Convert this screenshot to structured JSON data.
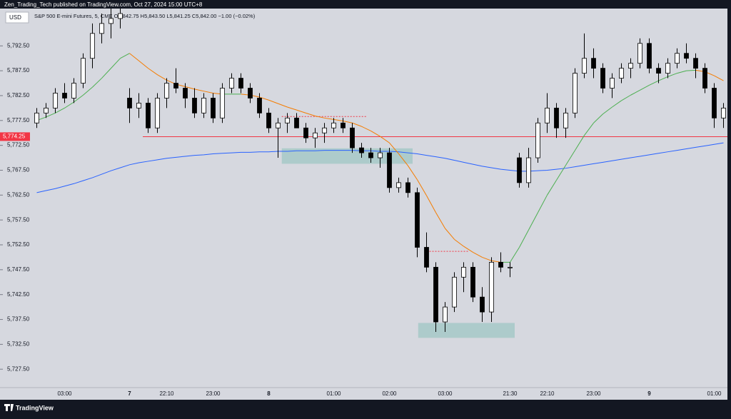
{
  "header": {
    "publisher": "Zen_Trading_Tech published on TradingView.com, Oct 27, 2024 15:00 UTC+8",
    "currency": "USD",
    "legend": "S&P 500 E-mini Futures, 5, CME  O5,842.75 H5,843.50 L5,841.25 C5,842.00 −1.00 (−0.02%)"
  },
  "chart_data": {
    "type": "candlestick",
    "categories": [
      null,
      null,
      null,
      "03:00",
      null,
      null,
      null,
      null,
      null,
      null,
      "7",
      null,
      null,
      null,
      "22:10",
      null,
      null,
      null,
      null,
      "23:00",
      null,
      null,
      null,
      null,
      null,
      "8",
      null,
      null,
      null,
      null,
      null,
      null,
      "01:00",
      null,
      null,
      null,
      null,
      null,
      "02:00",
      null,
      null,
      null,
      null,
      null,
      "03:00",
      null,
      null,
      null,
      null,
      null,
      null,
      "21:30",
      null,
      null,
      null,
      "22:10",
      null,
      null,
      null,
      null,
      "23:00",
      null,
      null,
      null,
      null,
      null,
      "9",
      null,
      null,
      null,
      null,
      null,
      null,
      "01:00",
      null
    ],
    "open": [
      5777,
      5779,
      5780,
      5783,
      5782,
      5785,
      5790,
      5795,
      5797,
      5798,
      5782,
      5780,
      5781,
      5776,
      5782,
      5785,
      5784,
      5782,
      5779,
      5782,
      5778,
      5784,
      5786,
      5784,
      5782,
      5779,
      5776,
      5777,
      5778,
      5776,
      5774,
      5775,
      5776,
      5777,
      5776,
      5772,
      5771,
      5770,
      5771,
      5764,
      5765,
      5763,
      5752,
      5748,
      5737,
      5740,
      5746,
      5748,
      5742,
      5739,
      5749,
      5748,
      5770,
      5765,
      5770,
      5777,
      5780,
      5776,
      5779,
      5787,
      5790,
      5788,
      5784,
      5786,
      5788,
      5789,
      5793,
      5788,
      5787,
      5789,
      5791,
      5790,
      5788,
      5784,
      5778
    ],
    "high": [
      5780,
      5781,
      5784,
      5785,
      5786,
      5791,
      5797,
      5799,
      5800,
      5800,
      5784,
      5783,
      5782,
      5783,
      5786,
      5788,
      5785,
      5784,
      5783,
      5783,
      5785,
      5787,
      5787,
      5785,
      5783,
      5780,
      5778,
      5779,
      5779,
      5777,
      5776,
      5777,
      5778,
      5778,
      5777,
      5773,
      5772,
      5772,
      5772,
      5766,
      5766,
      5764,
      5755,
      5749,
      5741,
      5747,
      5749,
      5749,
      5744,
      5750,
      5751,
      5749,
      5771,
      5772,
      5778,
      5783,
      5781,
      5780,
      5788,
      5795,
      5792,
      5789,
      5787,
      5789,
      5790,
      5794,
      5794,
      5789,
      5790,
      5792,
      5793,
      5791,
      5789,
      5785,
      5781
    ],
    "low": [
      5776,
      5778,
      5779,
      5781,
      5781,
      5784,
      5788,
      5793,
      5794,
      5796,
      5777,
      5778,
      5775,
      5775,
      5780,
      5783,
      5780,
      5778,
      5778,
      5777,
      5777,
      5783,
      5783,
      5781,
      5778,
      5775,
      5770,
      5775,
      5776,
      5773,
      5772,
      5773,
      5775,
      5775,
      5771,
      5770,
      5769,
      5768,
      5763,
      5763,
      5762,
      5750,
      5747,
      5735,
      5735,
      5739,
      5743,
      5741,
      5737,
      5737,
      5747,
      5746,
      5764,
      5764,
      5769,
      5775,
      5774,
      5774,
      5778,
      5786,
      5786,
      5783,
      5782,
      5785,
      5786,
      5788,
      5787,
      5785,
      5786,
      5788,
      5789,
      5786,
      5783,
      5776,
      5776
    ],
    "close": [
      5779,
      5780,
      5783,
      5782,
      5785,
      5790,
      5795,
      5797,
      5798,
      5799,
      5780,
      5781,
      5776,
      5782,
      5785,
      5784,
      5782,
      5779,
      5782,
      5778,
      5784,
      5786,
      5784,
      5782,
      5779,
      5776,
      5777,
      5778,
      5776,
      5774,
      5775,
      5776,
      5777,
      5776,
      5772,
      5771,
      5770,
      5771,
      5764,
      5765,
      5763,
      5752,
      5748,
      5737,
      5740,
      5746,
      5748,
      5742,
      5739,
      5749,
      5748,
      5748,
      5765,
      5770,
      5777,
      5780,
      5776,
      5779,
      5787,
      5790,
      5788,
      5784,
      5786,
      5788,
      5789,
      5793,
      5788,
      5787,
      5789,
      5791,
      5790,
      5788,
      5784,
      5778,
      5780
    ],
    "up_color": "#ffffff",
    "down_color": "#000000",
    "lines": [
      {
        "color": "#2962ff",
        "values": [
          5763.0,
          5763.4,
          5763.8,
          5764.3,
          5764.8,
          5765.4,
          5766.0,
          5766.7,
          5767.4,
          5768.0,
          5768.6,
          5769.0,
          5769.3,
          5769.6,
          5769.9,
          5770.1,
          5770.3,
          5770.5,
          5770.6,
          5770.8,
          5770.9,
          5771.0,
          5771.1,
          5771.1,
          5771.2,
          5771.2,
          5771.3,
          5771.3,
          5771.4,
          5771.4,
          5771.4,
          5771.5,
          5771.5,
          5771.5,
          5771.5,
          5771.4,
          5771.4,
          5771.3,
          5771.3,
          5771.2,
          5771.0,
          5770.8,
          5770.5,
          5770.2,
          5769.9,
          5769.5,
          5769.1,
          5768.7,
          5768.3,
          5768.0,
          5767.7,
          5767.5,
          5767.3,
          5767.3,
          5767.4,
          5767.5,
          5767.7,
          5767.9,
          5768.2,
          5768.5,
          5768.8,
          5769.1,
          5769.4,
          5769.7,
          5770.0,
          5770.3,
          5770.6,
          5770.9,
          5771.2,
          5771.5,
          5771.8,
          5772.1,
          5772.4,
          5772.7,
          5773.0
        ]
      },
      {
        "up_color": "#4caf50",
        "down_color": "#f57c00",
        "values": [
          5777.5,
          5778.2,
          5779.0,
          5780.0,
          5781.2,
          5782.6,
          5784.2,
          5786.0,
          5788.0,
          5790.0,
          5791.0,
          5789.5,
          5788.0,
          5786.7,
          5785.6,
          5784.8,
          5784.3,
          5783.8,
          5783.4,
          5783.0,
          5782.8,
          5782.8,
          5782.8,
          5782.6,
          5782.2,
          5781.6,
          5780.9,
          5780.2,
          5779.6,
          5779.0,
          5778.4,
          5778.0,
          5777.7,
          5777.4,
          5777.0,
          5776.3,
          5775.4,
          5774.3,
          5773.0,
          5770.8,
          5768.4,
          5765.6,
          5762.4,
          5759.0,
          5755.8,
          5753.6,
          5752.2,
          5751.0,
          5750.0,
          5749.3,
          5749.0,
          5749.0,
          5752.0,
          5755.5,
          5759.0,
          5762.5,
          5765.5,
          5768.5,
          5771.5,
          5774.5,
          5777.0,
          5778.8,
          5780.2,
          5781.5,
          5782.6,
          5783.6,
          5784.6,
          5785.5,
          5786.3,
          5787.0,
          5787.5,
          5787.6,
          5787.3,
          5786.5,
          5785.5
        ]
      }
    ],
    "zones": [
      {
        "from": 26.9,
        "to": 41,
        "low": 5768.8,
        "high": 5771.9,
        "color": "#a6c9c8"
      },
      {
        "from": 41.6,
        "to": 52,
        "low": 5733.8,
        "high": 5736.8,
        "color": "#a6c9c8"
      }
    ],
    "levels": [
      {
        "from": 26.9,
        "to": 36,
        "value": 5778.3,
        "color": "#f23645"
      },
      {
        "from": 42.5,
        "to": 47,
        "value": 5751.2,
        "color": "#f23645"
      }
    ],
    "price_line": {
      "value": 5774.25,
      "label": "5,774.25",
      "color": "#f23645"
    },
    "ylim": [
      5723.8,
      5800
    ],
    "yticks": [
      {
        "value": 5792.5,
        "label": "5,792.50"
      },
      {
        "value": 5787.5,
        "label": "5,787.50"
      },
      {
        "value": 5782.5,
        "label": "5,782.50"
      },
      {
        "value": 5777.5,
        "label": "5,777.50"
      },
      {
        "value": 5772.5,
        "label": "5,772.50"
      },
      {
        "value": 5767.5,
        "label": "5,767.50"
      },
      {
        "value": 5762.5,
        "label": "5,762.50"
      },
      {
        "value": 5757.5,
        "label": "5,757.50"
      },
      {
        "value": 5752.5,
        "label": "5,752.50"
      },
      {
        "value": 5747.5,
        "label": "5,747.50"
      },
      {
        "value": 5742.5,
        "label": "5,742.50"
      },
      {
        "value": 5737.5,
        "label": "5,737.50"
      },
      {
        "value": 5732.5,
        "label": "5,732.50"
      },
      {
        "value": 5727.5,
        "label": "5,727.50"
      }
    ],
    "grid": false
  },
  "footer": {
    "brand": "TradingView"
  }
}
